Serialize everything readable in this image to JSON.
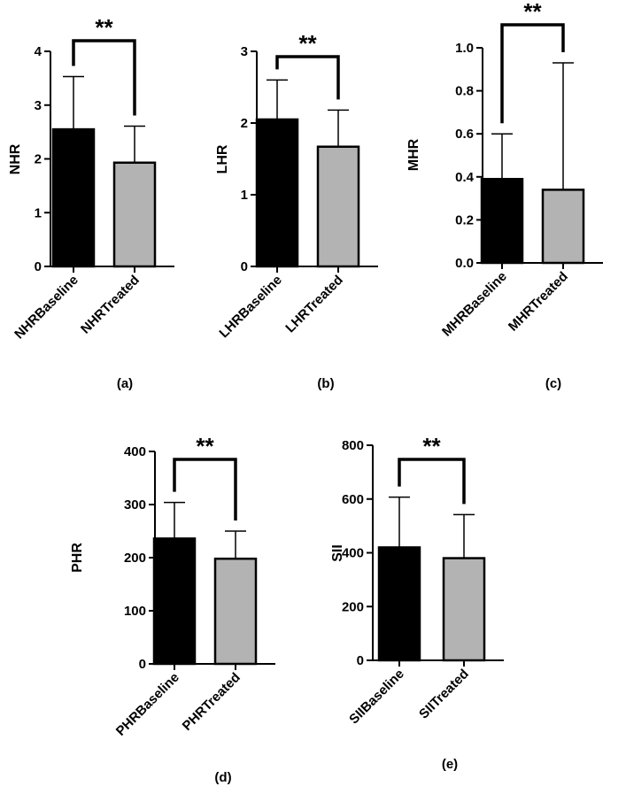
{
  "chart_data": [
    {
      "type": "bar",
      "panel_label": "(a)",
      "ylabel": "NHR",
      "categories": [
        "NHRBaseline",
        "NHRTreated"
      ],
      "values": [
        2.55,
        1.93
      ],
      "error_upper": [
        3.53,
        2.61
      ],
      "ylim": [
        0,
        4
      ],
      "yticks": [
        "0",
        "1",
        "2",
        "3",
        "4"
      ],
      "significance": "**",
      "colors": [
        "#000000",
        "#b3b3b3"
      ]
    },
    {
      "type": "bar",
      "panel_label": "(b)",
      "ylabel": "LHR",
      "categories": [
        "LHRBaseline",
        "LHRTreated"
      ],
      "values": [
        2.05,
        1.67
      ],
      "error_upper": [
        2.6,
        2.18
      ],
      "ylim": [
        0,
        3
      ],
      "yticks": [
        "0",
        "1",
        "2",
        "3"
      ],
      "significance": "**",
      "colors": [
        "#000000",
        "#b3b3b3"
      ]
    },
    {
      "type": "bar",
      "panel_label": "(c)",
      "ylabel": "MHR",
      "categories": [
        "MHRBaseline",
        "MHRTreated"
      ],
      "values": [
        0.39,
        0.34
      ],
      "error_upper": [
        0.6,
        0.93
      ],
      "ylim": [
        0,
        1.0
      ],
      "yticks": [
        "0.0",
        "0.2",
        "0.4",
        "0.6",
        "0.8",
        "1.0"
      ],
      "significance": "**",
      "colors": [
        "#000000",
        "#b3b3b3"
      ]
    },
    {
      "type": "bar",
      "panel_label": "(d)",
      "ylabel": "PHR",
      "categories": [
        "PHRBaseline",
        "PHRTreated"
      ],
      "values": [
        236,
        198
      ],
      "error_upper": [
        304,
        250
      ],
      "ylim": [
        0,
        400
      ],
      "yticks": [
        "0",
        "100",
        "200",
        "300",
        "400"
      ],
      "significance": "**",
      "colors": [
        "#000000",
        "#b3b3b3"
      ]
    },
    {
      "type": "bar",
      "panel_label": "(e)",
      "ylabel": "SII",
      "categories": [
        "SIIBaseline",
        "SIITreated"
      ],
      "values": [
        420,
        380
      ],
      "error_upper": [
        607,
        542
      ],
      "ylim": [
        0,
        800
      ],
      "yticks": [
        "0",
        "200",
        "400",
        "600",
        "800"
      ],
      "significance": "**",
      "colors": [
        "#000000",
        "#b3b3b3"
      ]
    }
  ]
}
